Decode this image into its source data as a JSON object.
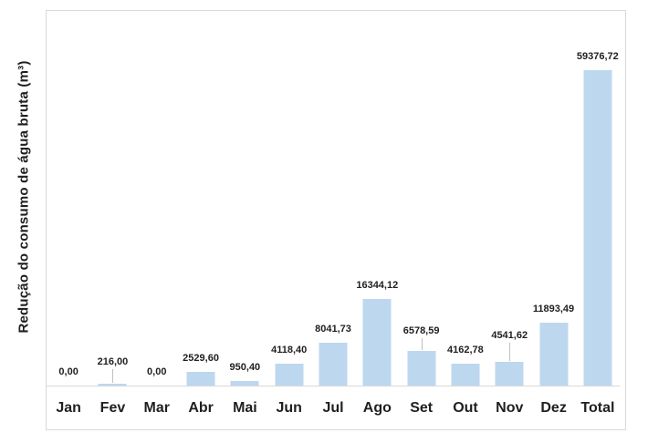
{
  "chart_data": {
    "type": "bar",
    "title": "",
    "xlabel": "",
    "ylabel": "Redução do consumo de água bruta (m³)",
    "categories": [
      "Jan",
      "Fev",
      "Mar",
      "Abr",
      "Mai",
      "Jun",
      "Jul",
      "Ago",
      "Set",
      "Out",
      "Nov",
      "Dez",
      "Total"
    ],
    "values": [
      0,
      216.0,
      0,
      2529.6,
      950.4,
      4118.4,
      8041.73,
      16344.12,
      6578.59,
      4162.78,
      4541.62,
      11893.49,
      59376.72
    ],
    "data_labels": [
      "0,00",
      "216,00",
      "0,00",
      "2529,60",
      "950,40",
      "4118,40",
      "8041,73",
      "16344,12",
      "6578,59",
      "4162,78",
      "4541,62",
      "11893,49",
      "59376,72"
    ],
    "label_lifts": [
      0,
      9,
      0,
      0,
      0,
      0,
      0,
      0,
      7,
      0,
      14,
      0,
      0
    ],
    "ylim": [
      0,
      59376.72
    ],
    "gridlines": false,
    "legend": "none",
    "bar_color": "#BDD7EE",
    "axis_color": "#D9D9D9",
    "leader_color": "#BFBFBF",
    "text_color": "#1f1f1f"
  }
}
